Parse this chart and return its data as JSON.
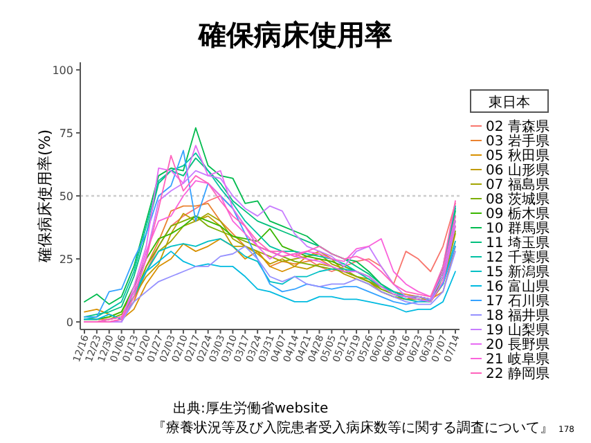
{
  "chart_data": {
    "type": "line",
    "title": "確保病床使用率",
    "ylabel": "確保病床使用率(%)",
    "legend_title": "東日本",
    "legend": "right",
    "grid": false,
    "categories": [
      "12/16",
      "12/23",
      "12/30",
      "01/06",
      "01/13",
      "01/20",
      "01/27",
      "02/03",
      "02/10",
      "02/17",
      "02/24",
      "03/03",
      "03/10",
      "03/17",
      "03/24",
      "03/31",
      "04/07",
      "04/14",
      "04/21",
      "04/28",
      "05/05",
      "05/12",
      "05/19",
      "05/26",
      "06/02",
      "06/09",
      "06/16",
      "06/23",
      "06/30",
      "07/07",
      "07/14"
    ],
    "ylim": [
      -3,
      103
    ],
    "yticks": [
      0,
      25,
      50,
      75,
      100
    ],
    "ref_lines": [
      {
        "axis": "y",
        "value": 50,
        "color": "#cccccc",
        "line_style": "dotted"
      }
    ],
    "annotations": [
      "出典:厚生労働省website",
      "『療養状況等及び入院患者受入病床数等に関する調査について』",
      "178"
    ],
    "series": [
      {
        "name": "02 青森県",
        "color": "#F8766D",
        "values": [
          1,
          1,
          1,
          2,
          8,
          20,
          30,
          38,
          42,
          45,
          48,
          50,
          45,
          38,
          30,
          28,
          26,
          27,
          25,
          22,
          20,
          22,
          24,
          25,
          22,
          15,
          28,
          25,
          20,
          30,
          47
        ]
      },
      {
        "name": "03 岩手県",
        "color": "#EA8331",
        "values": [
          0,
          0,
          0,
          1,
          8,
          22,
          32,
          44,
          46,
          46,
          47,
          40,
          35,
          30,
          28,
          22,
          24,
          23,
          24,
          25,
          22,
          20,
          18,
          16,
          14,
          12,
          11,
          10,
          9,
          12,
          30
        ]
      },
      {
        "name": "05 秋田県",
        "color": "#D89000",
        "values": [
          4,
          5,
          3,
          1,
          5,
          15,
          22,
          25,
          31,
          28,
          30,
          33,
          30,
          25,
          28,
          22,
          20,
          22,
          26,
          28,
          25,
          20,
          18,
          16,
          12,
          10,
          9,
          10,
          8,
          15,
          35
        ]
      },
      {
        "name": "06 山形県",
        "color": "#C09B00",
        "values": [
          0,
          0,
          1,
          2,
          10,
          18,
          23,
          35,
          43,
          40,
          42,
          38,
          30,
          30,
          27,
          23,
          25,
          22,
          21,
          23,
          22,
          19,
          17,
          15,
          12,
          10,
          9,
          9,
          8,
          18,
          38
        ]
      },
      {
        "name": "07 福島県",
        "color": "#A3A500",
        "values": [
          1,
          1,
          2,
          4,
          12,
          20,
          28,
          32,
          38,
          40,
          43,
          40,
          33,
          30,
          28,
          26,
          24,
          25,
          26,
          27,
          23,
          21,
          18,
          17,
          13,
          11,
          10,
          10,
          9,
          20,
          40
        ]
      },
      {
        "name": "08 茨城県",
        "color": "#7CAE00",
        "values": [
          0,
          0,
          1,
          3,
          10,
          22,
          30,
          38,
          40,
          42,
          38,
          36,
          34,
          32,
          30,
          28,
          26,
          24,
          23,
          22,
          21,
          20,
          18,
          16,
          13,
          11,
          10,
          9,
          8,
          16,
          36
        ]
      },
      {
        "name": "09 栃木県",
        "color": "#39B600",
        "values": [
          1,
          1,
          2,
          4,
          14,
          25,
          33,
          35,
          38,
          42,
          40,
          38,
          34,
          33,
          32,
          37,
          30,
          28,
          26,
          25,
          24,
          22,
          20,
          18,
          14,
          12,
          10,
          9,
          8,
          18,
          42
        ]
      },
      {
        "name": "10 群馬県",
        "color": "#00BB4E",
        "values": [
          8,
          11,
          7,
          10,
          22,
          40,
          58,
          61,
          60,
          77,
          62,
          58,
          57,
          47,
          48,
          40,
          38,
          36,
          34,
          30,
          27,
          25,
          24,
          20,
          15,
          12,
          10,
          10,
          9,
          20,
          44
        ]
      },
      {
        "name": "11 埼玉県",
        "color": "#00BF7D",
        "values": [
          2,
          3,
          4,
          6,
          18,
          35,
          55,
          60,
          58,
          65,
          60,
          55,
          48,
          44,
          40,
          38,
          36,
          34,
          32,
          30,
          27,
          25,
          22,
          19,
          15,
          12,
          10,
          9,
          8,
          22,
          45
        ]
      },
      {
        "name": "12 千葉県",
        "color": "#00C1A3",
        "values": [
          1,
          2,
          5,
          8,
          20,
          38,
          56,
          60,
          62,
          67,
          60,
          53,
          47,
          40,
          35,
          30,
          28,
          28,
          27,
          26,
          25,
          23,
          20,
          17,
          14,
          11,
          9,
          8,
          8,
          20,
          46
        ]
      },
      {
        "name": "15 新潟県",
        "color": "#00BFC4",
        "values": [
          0,
          0,
          0,
          0,
          10,
          20,
          28,
          30,
          31,
          30,
          32,
          33,
          30,
          26,
          24,
          16,
          15,
          18,
          18,
          20,
          21,
          21,
          20,
          18,
          14,
          12,
          10,
          10,
          9,
          15,
          32
        ]
      },
      {
        "name": "16 富山県",
        "color": "#00BAE0",
        "values": [
          1,
          1,
          3,
          1,
          12,
          20,
          24,
          28,
          24,
          22,
          23,
          22,
          22,
          18,
          13,
          12,
          10,
          8,
          8,
          10,
          10,
          9,
          9,
          8,
          7,
          6,
          4,
          5,
          5,
          8,
          20
        ]
      },
      {
        "name": "17 石川県",
        "color": "#35A2FF",
        "values": [
          2,
          2,
          12,
          13,
          25,
          35,
          50,
          54,
          68,
          40,
          55,
          50,
          45,
          35,
          25,
          15,
          12,
          13,
          15,
          14,
          13,
          14,
          14,
          12,
          10,
          8,
          7,
          8,
          9,
          15,
          30
        ]
      },
      {
        "name": "18 福井県",
        "color": "#9590FF",
        "values": [
          0,
          0,
          0,
          0,
          8,
          12,
          16,
          18,
          20,
          22,
          22,
          26,
          27,
          30,
          25,
          18,
          16,
          18,
          15,
          14,
          15,
          15,
          17,
          15,
          12,
          10,
          8,
          7,
          7,
          12,
          28
        ]
      },
      {
        "name": "19 山梨県",
        "color": "#C77CFF",
        "values": [
          0,
          0,
          0,
          0,
          10,
          26,
          48,
          52,
          55,
          60,
          58,
          57,
          50,
          45,
          42,
          46,
          44,
          35,
          30,
          28,
          26,
          22,
          28,
          30,
          22,
          15,
          10,
          10,
          9,
          18,
          40
        ]
      },
      {
        "name": "20 長野県",
        "color": "#E76BF3",
        "values": [
          0,
          0,
          0,
          1,
          14,
          30,
          61,
          60,
          55,
          70,
          58,
          60,
          45,
          38,
          30,
          25,
          28,
          26,
          25,
          24,
          22,
          20,
          20,
          18,
          14,
          11,
          10,
          9,
          8,
          16,
          38
        ]
      },
      {
        "name": "21 岐阜県",
        "color": "#FA62DB",
        "values": [
          0,
          0,
          1,
          2,
          12,
          28,
          40,
          42,
          50,
          56,
          55,
          50,
          40,
          35,
          30,
          28,
          26,
          27,
          28,
          27,
          25,
          24,
          29,
          30,
          33,
          20,
          15,
          12,
          10,
          20,
          42
        ]
      },
      {
        "name": "22 静岡県",
        "color": "#FF62BC",
        "values": [
          0,
          0,
          0,
          1,
          10,
          25,
          45,
          66,
          52,
          58,
          55,
          48,
          42,
          38,
          32,
          28,
          28,
          26,
          28,
          30,
          27,
          25,
          26,
          24,
          20,
          15,
          12,
          11,
          10,
          22,
          48
        ]
      }
    ]
  }
}
